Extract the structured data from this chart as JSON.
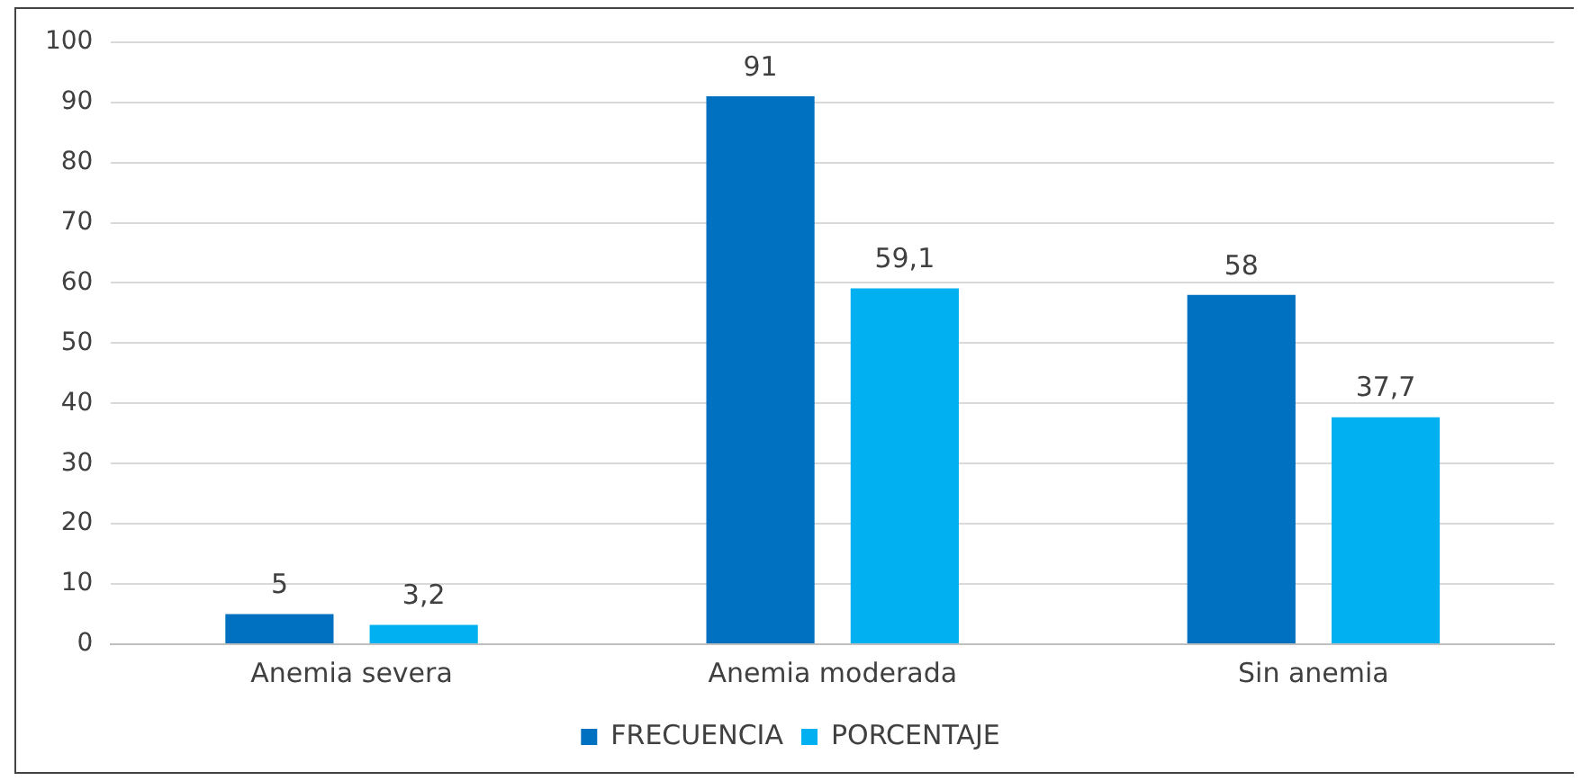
{
  "chart_data": {
    "type": "bar",
    "categories": [
      "Anemia severa",
      "Anemia moderada",
      "Sin anemia"
    ],
    "series": [
      {
        "name": "FRECUENCIA",
        "color": "#0070c0",
        "values": [
          5,
          91,
          58
        ],
        "value_labels": [
          "5",
          "91",
          "58"
        ]
      },
      {
        "name": "PORCENTAJE",
        "color": "#00b0f0",
        "values": [
          3.2,
          59.1,
          37.7
        ],
        "value_labels": [
          "3,2",
          "59,1",
          "37,7"
        ]
      }
    ],
    "ylim": [
      0,
      100
    ],
    "yticks": [
      0,
      10,
      20,
      30,
      40,
      50,
      60,
      70,
      80,
      90,
      100
    ],
    "grid": "y",
    "legend": "bottom"
  }
}
